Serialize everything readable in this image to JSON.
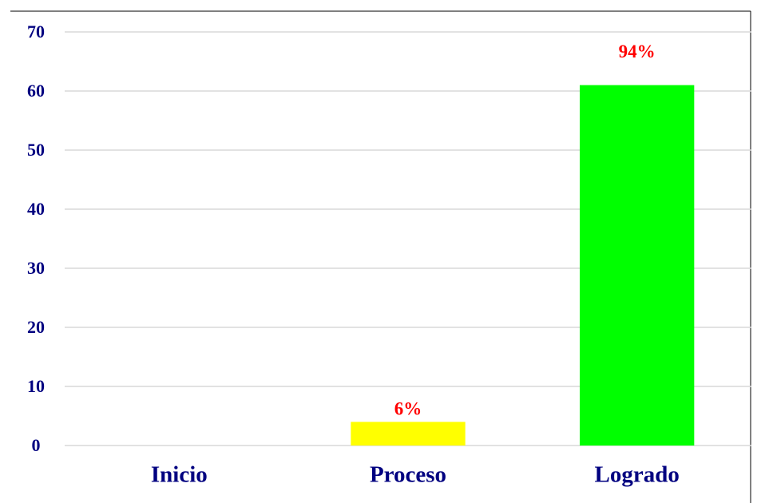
{
  "chart_data": {
    "type": "bar",
    "categories": [
      "Inicio",
      "Proceso",
      "Logrado"
    ],
    "values": [
      0,
      4,
      61
    ],
    "percent_labels": [
      null,
      "6%",
      "94%"
    ],
    "colors": [
      "#ffff00",
      "#ffff00",
      "#00ff00"
    ],
    "ylim": [
      0,
      70
    ],
    "yticks": [
      0,
      10,
      20,
      30,
      40,
      50,
      60,
      70
    ],
    "grid": true
  }
}
